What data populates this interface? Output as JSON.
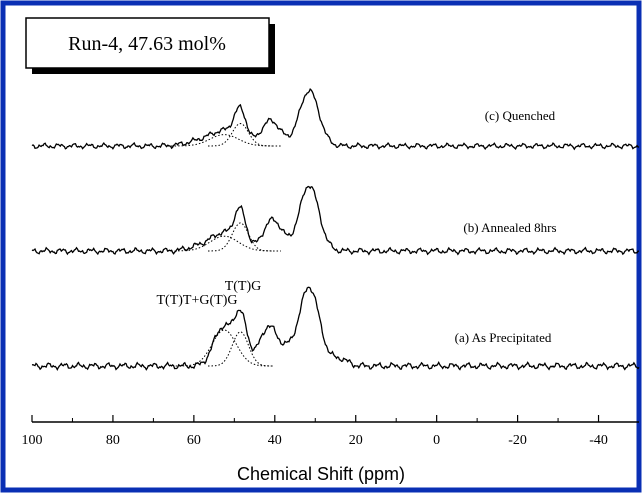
{
  "chart_data": {
    "type": "line",
    "title": "Run-4, 47.63 mol%",
    "xlabel": "Chemical Shift (ppm)",
    "ylabel": "",
    "xlim": [
      100,
      -50
    ],
    "x_reversed": true,
    "grid": false,
    "xticks": [
      100,
      80,
      60,
      40,
      20,
      0,
      -20,
      -40
    ],
    "xtick_labels": [
      "100",
      "80",
      "60",
      "40",
      "20",
      "0",
      "-20",
      "-40"
    ],
    "peak_labels": [
      "T(T)T+G(T)G",
      "T(T)G"
    ],
    "colors": {
      "frame": "#0a2fb4",
      "spectrum": "#000000",
      "deconvolution": "#000000"
    },
    "series": [
      {
        "name": "(c) Quenched",
        "peaks": [
          {
            "position": 52,
            "height": 0.4,
            "width": 3.0
          },
          {
            "position": 48.5,
            "height": 1.05,
            "width": 1.5
          },
          {
            "position": 41,
            "height": 0.85,
            "width": 2.4
          },
          {
            "position": 31.5,
            "height": 1.85,
            "width": 2.4
          },
          {
            "position": 57,
            "height": 0.22,
            "width": 4.0
          }
        ],
        "fit_peaks": [
          {
            "position": 52.5,
            "height": 0.38,
            "width": 3.5
          },
          {
            "position": 48.5,
            "height": 0.75,
            "width": 2.0
          }
        ]
      },
      {
        "name": "(b) Annealed 8hrs",
        "peaks": [
          {
            "position": 52.5,
            "height": 0.45,
            "width": 2.6
          },
          {
            "position": 48.5,
            "height": 1.15,
            "width": 1.5
          },
          {
            "position": 40.5,
            "height": 0.95,
            "width": 2.4
          },
          {
            "position": 31.5,
            "height": 2.0,
            "width": 2.4
          },
          {
            "position": 57,
            "height": 0.2,
            "width": 3.5
          }
        ],
        "fit_peaks": [
          {
            "position": 52.5,
            "height": 0.45,
            "width": 3.5
          },
          {
            "position": 48.5,
            "height": 0.85,
            "width": 2.0
          }
        ]
      },
      {
        "name": "(a) As Precipitated",
        "peaks": [
          {
            "position": 53,
            "height": 1.05,
            "width": 2.2
          },
          {
            "position": 48.5,
            "height": 1.4,
            "width": 1.7
          },
          {
            "position": 41.5,
            "height": 1.1,
            "width": 2.2
          },
          {
            "position": 31.5,
            "height": 2.2,
            "width": 2.5
          },
          {
            "position": 37,
            "height": 0.3,
            "width": 1.8
          },
          {
            "position": 24,
            "height": 0.2,
            "width": 2.0
          }
        ],
        "fit_peaks": [
          {
            "position": 52.5,
            "height": 1.0,
            "width": 3.0
          },
          {
            "position": 48.5,
            "height": 0.95,
            "width": 2.0
          }
        ]
      }
    ]
  }
}
